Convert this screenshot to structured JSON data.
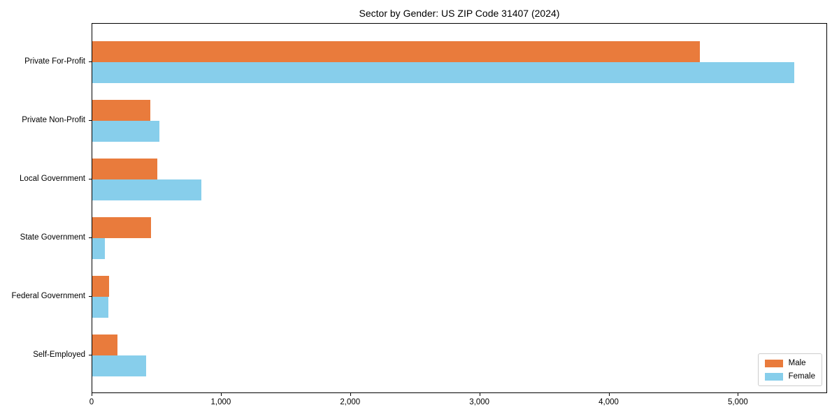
{
  "chart_data": {
    "type": "bar",
    "orientation": "horizontal",
    "title": "Sector by Gender: US ZIP Code 31407 (2024)",
    "categories": [
      "Private For-Profit",
      "Private Non-Profit",
      "Local Government",
      "State Government",
      "Federal Government",
      "Self-Employed"
    ],
    "series": [
      {
        "name": "Male",
        "color": "#E97B3C",
        "values": [
          4700,
          450,
          505,
          455,
          130,
          195
        ]
      },
      {
        "name": "Female",
        "color": "#87CEEB",
        "values": [
          5430,
          520,
          845,
          95,
          125,
          415
        ]
      }
    ],
    "xlabel": "",
    "ylabel": "",
    "xlim": [
      0,
      5690
    ],
    "xticks": [
      0,
      1000,
      2000,
      3000,
      4000,
      5000
    ],
    "xtick_labels": [
      "0",
      "1,000",
      "2,000",
      "3,000",
      "4,000",
      "5,000"
    ],
    "grid": false,
    "legend": {
      "position": "lower right"
    },
    "colors": {
      "male": "#E97B3C",
      "female": "#87CEEB",
      "spine": "#000000",
      "legend_border": "#cccccc"
    }
  }
}
